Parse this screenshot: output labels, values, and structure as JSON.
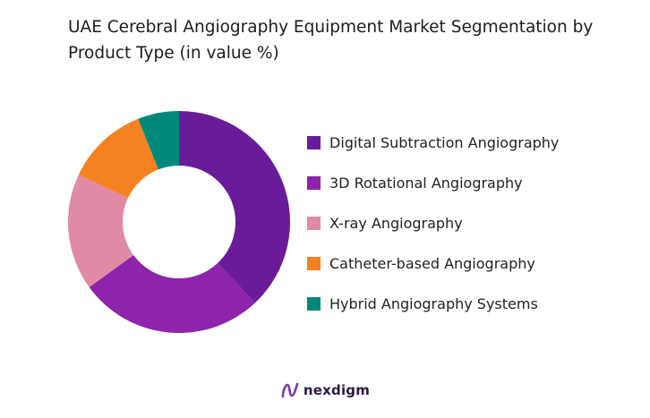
{
  "title": "UAE Cerebral Angiography Equipment Market Segmentation by Product Type (in value %)",
  "brand": {
    "name": "nexdigm",
    "logo_icon": "nexdigm-logo-icon"
  },
  "chart_data": {
    "type": "pie",
    "style": "donut",
    "title": "UAE Cerebral Angiography Equipment Market Segmentation by Product Type (in value %)",
    "legend_position": "right",
    "start_angle_deg": 0,
    "direction": "clockwise",
    "slices": [
      {
        "label": "Digital Subtraction Angiography",
        "value": 38,
        "color": "#6a1b9a"
      },
      {
        "label": "3D Rotational Angiography",
        "value": 27,
        "color": "#8e24aa"
      },
      {
        "label": "X-ray Angiography",
        "value": 17,
        "color": "#e08aa5"
      },
      {
        "label": "Catheter-based Angiography",
        "value": 12,
        "color": "#f58220"
      },
      {
        "label": "Hybrid Angiography Systems",
        "value": 6,
        "color": "#00897b"
      }
    ]
  }
}
